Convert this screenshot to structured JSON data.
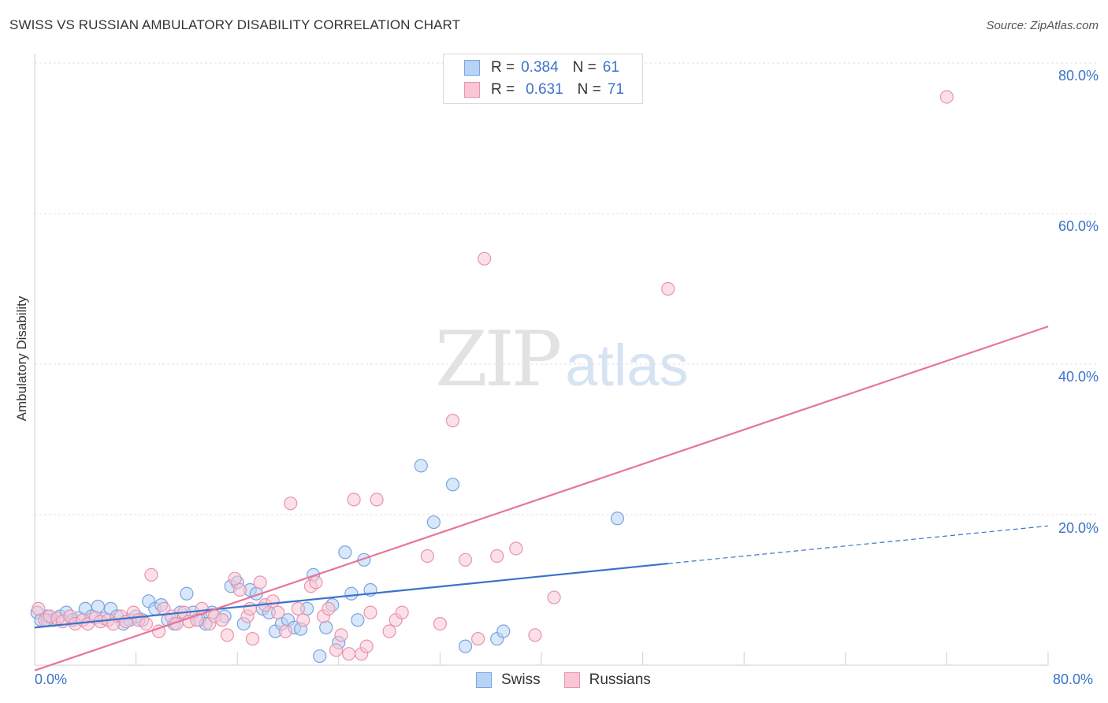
{
  "title": "SWISS VS RUSSIAN AMBULATORY DISABILITY CORRELATION CHART",
  "source": "Source: ZipAtlas.com",
  "watermark": {
    "zip": "ZIP",
    "atlas": "atlas"
  },
  "legend": {
    "swiss": {
      "r_label": "R =",
      "r_value": "0.384",
      "n_label": "N =",
      "n_value": "61",
      "name": "Swiss",
      "fill": "#b8d3f5",
      "stroke": "#7ba4dc"
    },
    "russians": {
      "r_label": "R =",
      "r_value": "0.631",
      "n_label": "N =",
      "n_value": "71",
      "name": "Russians",
      "fill": "#f8c6d5",
      "stroke": "#e993ad"
    }
  },
  "chart_data": {
    "type": "scatter",
    "title": "SWISS VS RUSSIAN AMBULATORY DISABILITY CORRELATION CHART",
    "xlabel": "",
    "ylabel": "Ambulatory Disability",
    "xlim": [
      0,
      80
    ],
    "ylim": [
      0,
      80
    ],
    "x_tick_labels": [
      "0.0%",
      "80.0%"
    ],
    "y_tick_labels": [
      "20.0%",
      "40.0%",
      "60.0%",
      "80.0%"
    ],
    "y_ticks": [
      20,
      40,
      60,
      80
    ],
    "grid": true,
    "series": [
      {
        "name": "Swiss",
        "color": "#3b73c9",
        "points": [
          [
            0.2,
            7.0
          ],
          [
            0.5,
            6.0
          ],
          [
            1.0,
            6.5
          ],
          [
            1.5,
            6.0
          ],
          [
            2.0,
            6.5
          ],
          [
            2.5,
            7.0
          ],
          [
            3.0,
            6.0
          ],
          [
            3.5,
            6.3
          ],
          [
            4.0,
            7.5
          ],
          [
            4.5,
            6.5
          ],
          [
            5.0,
            7.8
          ],
          [
            5.5,
            6.2
          ],
          [
            6.0,
            7.5
          ],
          [
            6.5,
            6.5
          ],
          [
            7.0,
            5.5
          ],
          [
            7.5,
            6.0
          ],
          [
            8.0,
            6.5
          ],
          [
            8.5,
            6.0
          ],
          [
            9.0,
            8.5
          ],
          [
            9.5,
            7.5
          ],
          [
            10.0,
            8.0
          ],
          [
            10.5,
            6.0
          ],
          [
            11.0,
            5.5
          ],
          [
            11.5,
            7.0
          ],
          [
            12.0,
            9.5
          ],
          [
            12.5,
            7.0
          ],
          [
            13.0,
            6.0
          ],
          [
            13.5,
            5.5
          ],
          [
            14.0,
            7.0
          ],
          [
            15.0,
            6.5
          ],
          [
            15.5,
            10.5
          ],
          [
            16.0,
            11.0
          ],
          [
            16.5,
            5.5
          ],
          [
            17.0,
            10.0
          ],
          [
            17.5,
            9.5
          ],
          [
            18.0,
            7.5
          ],
          [
            18.5,
            7.0
          ],
          [
            19.0,
            4.5
          ],
          [
            19.5,
            5.5
          ],
          [
            20.0,
            6.0
          ],
          [
            20.5,
            5.0
          ],
          [
            21.0,
            4.8
          ],
          [
            21.5,
            7.5
          ],
          [
            22.0,
            12.0
          ],
          [
            22.5,
            1.2
          ],
          [
            23.0,
            5.0
          ],
          [
            23.5,
            8.0
          ],
          [
            24.0,
            3.0
          ],
          [
            24.5,
            15.0
          ],
          [
            25.0,
            9.5
          ],
          [
            25.5,
            6.0
          ],
          [
            26.0,
            14.0
          ],
          [
            26.5,
            10.0
          ],
          [
            30.5,
            26.5
          ],
          [
            31.5,
            19.0
          ],
          [
            33.0,
            24.0
          ],
          [
            34.0,
            2.5
          ],
          [
            36.5,
            3.5
          ],
          [
            37.0,
            4.5
          ],
          [
            46.0,
            19.5
          ],
          [
            1.0,
            6.0
          ]
        ]
      },
      {
        "name": "Russians",
        "color": "#e8749a",
        "points": [
          [
            0.3,
            7.5
          ],
          [
            0.8,
            6.0
          ],
          [
            1.2,
            6.5
          ],
          [
            1.8,
            6.2
          ],
          [
            2.2,
            5.8
          ],
          [
            2.8,
            6.5
          ],
          [
            3.2,
            5.5
          ],
          [
            3.8,
            6.0
          ],
          [
            4.2,
            5.5
          ],
          [
            4.8,
            6.3
          ],
          [
            5.2,
            5.8
          ],
          [
            5.8,
            6.0
          ],
          [
            6.2,
            5.5
          ],
          [
            6.8,
            6.5
          ],
          [
            7.2,
            5.8
          ],
          [
            7.8,
            7.0
          ],
          [
            8.2,
            6.0
          ],
          [
            8.8,
            5.5
          ],
          [
            9.2,
            12.0
          ],
          [
            9.8,
            4.5
          ],
          [
            10.2,
            7.5
          ],
          [
            10.8,
            6.5
          ],
          [
            11.2,
            5.5
          ],
          [
            11.8,
            7.0
          ],
          [
            12.2,
            5.8
          ],
          [
            12.8,
            6.0
          ],
          [
            13.2,
            7.5
          ],
          [
            13.8,
            5.5
          ],
          [
            14.2,
            6.5
          ],
          [
            14.8,
            6.0
          ],
          [
            15.2,
            4.0
          ],
          [
            15.8,
            11.5
          ],
          [
            16.2,
            10.0
          ],
          [
            16.8,
            6.5
          ],
          [
            17.2,
            3.5
          ],
          [
            17.8,
            11.0
          ],
          [
            18.2,
            8.0
          ],
          [
            18.8,
            8.5
          ],
          [
            19.2,
            7.0
          ],
          [
            19.8,
            4.5
          ],
          [
            20.2,
            21.5
          ],
          [
            20.8,
            7.5
          ],
          [
            21.2,
            6.0
          ],
          [
            21.8,
            10.5
          ],
          [
            22.2,
            11.0
          ],
          [
            22.8,
            6.5
          ],
          [
            23.2,
            7.5
          ],
          [
            23.8,
            2.0
          ],
          [
            24.2,
            4.0
          ],
          [
            24.8,
            1.5
          ],
          [
            25.2,
            22.0
          ],
          [
            25.8,
            1.5
          ],
          [
            26.2,
            2.5
          ],
          [
            27.0,
            22.0
          ],
          [
            28.0,
            4.5
          ],
          [
            28.5,
            6.0
          ],
          [
            29.0,
            7.0
          ],
          [
            31.0,
            14.5
          ],
          [
            32.0,
            5.5
          ],
          [
            33.0,
            32.5
          ],
          [
            34.0,
            14.0
          ],
          [
            35.0,
            3.5
          ],
          [
            35.5,
            54.0
          ],
          [
            36.5,
            14.5
          ],
          [
            38.0,
            15.5
          ],
          [
            39.5,
            4.0
          ],
          [
            41.0,
            9.0
          ],
          [
            50.0,
            50.0
          ],
          [
            72.0,
            75.5
          ],
          [
            17.0,
            7.5
          ],
          [
            26.5,
            7.0
          ]
        ]
      }
    ],
    "trendlines": [
      {
        "series": "Swiss",
        "solid": [
          [
            0,
            5.0
          ],
          [
            50,
            13.5
          ]
        ],
        "dashed": [
          [
            50,
            13.5
          ],
          [
            80,
            18.5
          ]
        ]
      },
      {
        "series": "Russians",
        "solid": [
          [
            0,
            -0.7
          ],
          [
            80,
            45.0
          ]
        ]
      }
    ]
  }
}
